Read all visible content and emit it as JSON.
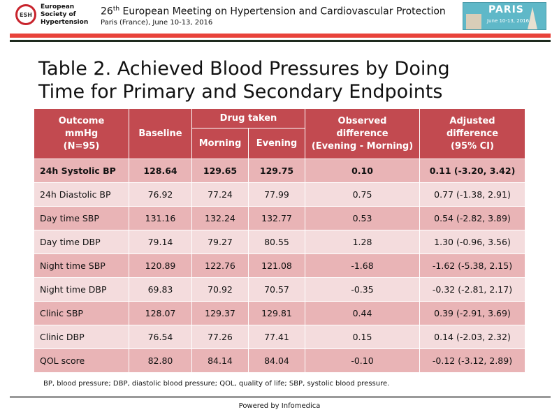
{
  "header": {
    "logo_abbr": "ESH",
    "logo_line1": "European",
    "logo_line2": "Society of",
    "logo_line3": "Hypertension",
    "conf_number": "26",
    "conf_suffix": "th",
    "conf_title_rest": " European Meeting on Hypertension and Cardiovascular Protection",
    "conf_subtitle": "Paris (France), June 10-13, 2016",
    "paris_word": "PARIS",
    "paris_dates": "June 10-13, 2016"
  },
  "title_line1": "Table 2. Achieved Blood Pressures by Doing",
  "title_line2": "Time for Primary and Secondary Endpoints",
  "table": {
    "h_outcome_1": "Outcome",
    "h_outcome_2": "mmHg",
    "h_outcome_3": "(N=95)",
    "h_baseline": "Baseline",
    "h_drug": "Drug taken",
    "h_morning": "Morning",
    "h_evening": "Evening",
    "h_obs_1": "Observed",
    "h_obs_2": "difference",
    "h_obs_3": "(Evening - Morning)",
    "h_adj_1": "Adjusted",
    "h_adj_2": "difference",
    "h_adj_3": "(95% CI)",
    "rows": [
      {
        "label": "24h Systolic BP",
        "baseline": "128.64",
        "morning": "129.65",
        "evening": "129.75",
        "observed": "0.10",
        "adjusted": "0.11 (-3.20, 3.42)"
      },
      {
        "label": "24h Diastolic BP",
        "baseline": "76.92",
        "morning": "77.24",
        "evening": "77.99",
        "observed": "0.75",
        "adjusted": "0.77 (-1.38, 2.91)"
      },
      {
        "label": "Day time SBP",
        "baseline": "131.16",
        "morning": "132.24",
        "evening": "132.77",
        "observed": "0.53",
        "adjusted": "0.54 (-2.82, 3.89)"
      },
      {
        "label": "Day time DBP",
        "baseline": "79.14",
        "morning": "79.27",
        "evening": "80.55",
        "observed": "1.28",
        "adjusted": "1.30 (-0.96, 3.56)"
      },
      {
        "label": "Night time SBP",
        "baseline": "120.89",
        "morning": "122.76",
        "evening": "121.08",
        "observed": "-1.68",
        "adjusted": "-1.62 (-5.38, 2.15)"
      },
      {
        "label": "Night time DBP",
        "baseline": "69.83",
        "morning": "70.92",
        "evening": "70.57",
        "observed": "-0.35",
        "adjusted": "-0.32 (-2.81, 2.17)"
      },
      {
        "label": "Clinic SBP",
        "baseline": "128.07",
        "morning": "129.37",
        "evening": "129.81",
        "observed": "0.44",
        "adjusted": "0.39 (-2.91, 3.69)"
      },
      {
        "label": "Clinic DBP",
        "baseline": "76.54",
        "morning": "77.26",
        "evening": "77.41",
        "observed": "0.15",
        "adjusted": "0.14 (-2.03, 2.32)"
      },
      {
        "label": "QOL score",
        "baseline": "82.80",
        "morning": "84.14",
        "evening": "84.04",
        "observed": "-0.10",
        "adjusted": "-0.12 (-3.12, 2.89)"
      }
    ]
  },
  "footnote": "BP, blood pressure; DBP, diastolic blood pressure; QOL, quality of life; SBP, systolic blood pressure.",
  "footer": "Powered by Infomedica",
  "colors": {
    "header_red": "#c24a50",
    "row_dark": "#e9b4b6",
    "row_light": "#f4dcdd",
    "band_red": "#e8423a"
  }
}
